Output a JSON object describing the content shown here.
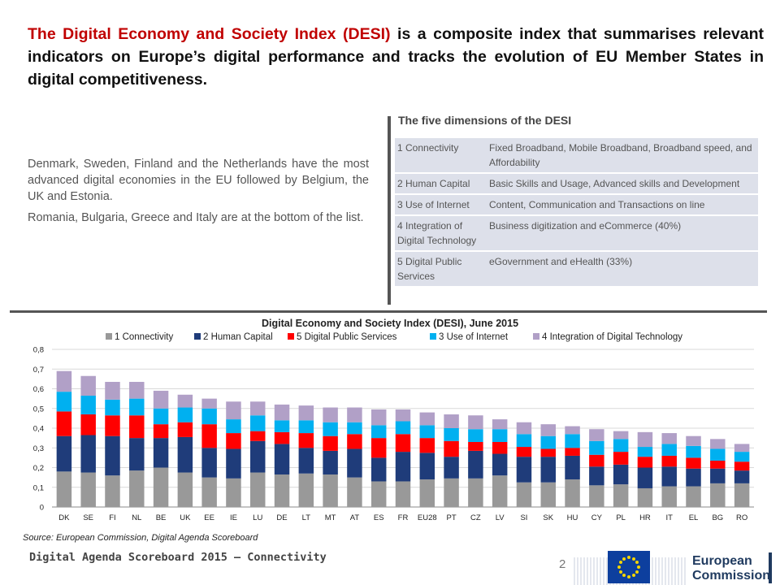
{
  "headline": {
    "lead": "The Digital Economy and Society Index (DESI)",
    "rest": " is a composite index that summarises relevant indicators on Europe’s digital performance and tracks the evolution of EU Member States in digital competitiveness."
  },
  "intro": {
    "p1": "Denmark, Sweden, Finland and the Netherlands have the most advanced digital economies in the EU followed by Belgium, the UK and Estonia.",
    "p2": "Romania, Bulgaria, Greece and Italy are at the bottom of the list."
  },
  "dimensions": {
    "title": "The five dimensions of the DESI",
    "rows": [
      {
        "name": "1 Connectivity",
        "desc": "Fixed Broadband, Mobile Broadband, Broadband speed, and Affordability"
      },
      {
        "name": "2 Human Capital",
        "desc": "Basic Skills and Usage, Advanced skills and Development"
      },
      {
        "name": "3 Use of Internet",
        "desc": "Content, Communication and Transactions on line"
      },
      {
        "name": "4 Integration of Digital Technology",
        "desc": "Business digitization and eCommerce (40%)"
      },
      {
        "name": "5 Digital Public Services",
        "desc": "eGovernment and eHealth (33%)"
      }
    ]
  },
  "chart_data": {
    "type": "bar",
    "stacked": true,
    "title": "Digital Economy and Society Index (DESI), June 2015",
    "xlabel": "",
    "ylabel": "",
    "ylim": [
      0,
      0.8
    ],
    "yticks": [
      "0",
      "0,1",
      "0,2",
      "0,3",
      "0,4",
      "0,5",
      "0,6",
      "0,7",
      "0,8"
    ],
    "grid": true,
    "legend_position": "top",
    "categories": [
      "DK",
      "SE",
      "FI",
      "NL",
      "BE",
      "UK",
      "EE",
      "IE",
      "LU",
      "DE",
      "LT",
      "MT",
      "AT",
      "ES",
      "FR",
      "EU28",
      "PT",
      "CZ",
      "LV",
      "SI",
      "SK",
      "HU",
      "CY",
      "PL",
      "HR",
      "IT",
      "EL",
      "BG",
      "RO"
    ],
    "series": [
      {
        "name": "1 Connectivity",
        "color": "#999999",
        "values": [
          0.18,
          0.175,
          0.16,
          0.185,
          0.2,
          0.175,
          0.15,
          0.145,
          0.175,
          0.165,
          0.17,
          0.165,
          0.15,
          0.13,
          0.13,
          0.14,
          0.145,
          0.145,
          0.16,
          0.125,
          0.125,
          0.14,
          0.11,
          0.115,
          0.095,
          0.105,
          0.105,
          0.12,
          0.12
        ]
      },
      {
        "name": "2 Human Capital",
        "color": "#1f3c7a",
        "values": [
          0.18,
          0.19,
          0.2,
          0.165,
          0.15,
          0.18,
          0.15,
          0.15,
          0.16,
          0.155,
          0.13,
          0.12,
          0.145,
          0.12,
          0.15,
          0.135,
          0.11,
          0.14,
          0.11,
          0.13,
          0.13,
          0.12,
          0.095,
          0.1,
          0.105,
          0.1,
          0.09,
          0.075,
          0.065
        ]
      },
      {
        "name": "5 Digital Public Services",
        "color": "#ff0000",
        "values": [
          0.125,
          0.105,
          0.105,
          0.115,
          0.07,
          0.075,
          0.12,
          0.08,
          0.05,
          0.06,
          0.075,
          0.075,
          0.075,
          0.1,
          0.09,
          0.075,
          0.08,
          0.045,
          0.06,
          0.05,
          0.04,
          0.04,
          0.06,
          0.065,
          0.055,
          0.055,
          0.055,
          0.04,
          0.045
        ]
      },
      {
        "name": "3 Use of Internet",
        "color": "#00b0f0",
        "values": [
          0.1,
          0.095,
          0.08,
          0.085,
          0.08,
          0.075,
          0.08,
          0.07,
          0.08,
          0.06,
          0.065,
          0.07,
          0.06,
          0.065,
          0.065,
          0.065,
          0.065,
          0.065,
          0.065,
          0.065,
          0.065,
          0.07,
          0.07,
          0.065,
          0.05,
          0.06,
          0.06,
          0.06,
          0.05
        ]
      },
      {
        "name": "4 Integration of Digital Technology",
        "color": "#b1a0c7",
        "values": [
          0.105,
          0.1,
          0.09,
          0.085,
          0.09,
          0.065,
          0.05,
          0.09,
          0.07,
          0.08,
          0.075,
          0.075,
          0.075,
          0.08,
          0.06,
          0.065,
          0.07,
          0.07,
          0.05,
          0.06,
          0.06,
          0.04,
          0.06,
          0.04,
          0.075,
          0.055,
          0.05,
          0.05,
          0.04
        ]
      }
    ],
    "legend_order": [
      "1 Connectivity",
      "2 Human Capital",
      "5 Digital Public Services",
      "3 Use of Internet",
      "4 Integration of Digital Technology"
    ]
  },
  "source": "Source: European Commission, Digital Agenda Scoreboard",
  "footer": {
    "title": "Digital Agenda Scoreboard 2015 – Connectivity",
    "page_number": "2",
    "logo_line1": "European",
    "logo_line2": "Commission"
  }
}
